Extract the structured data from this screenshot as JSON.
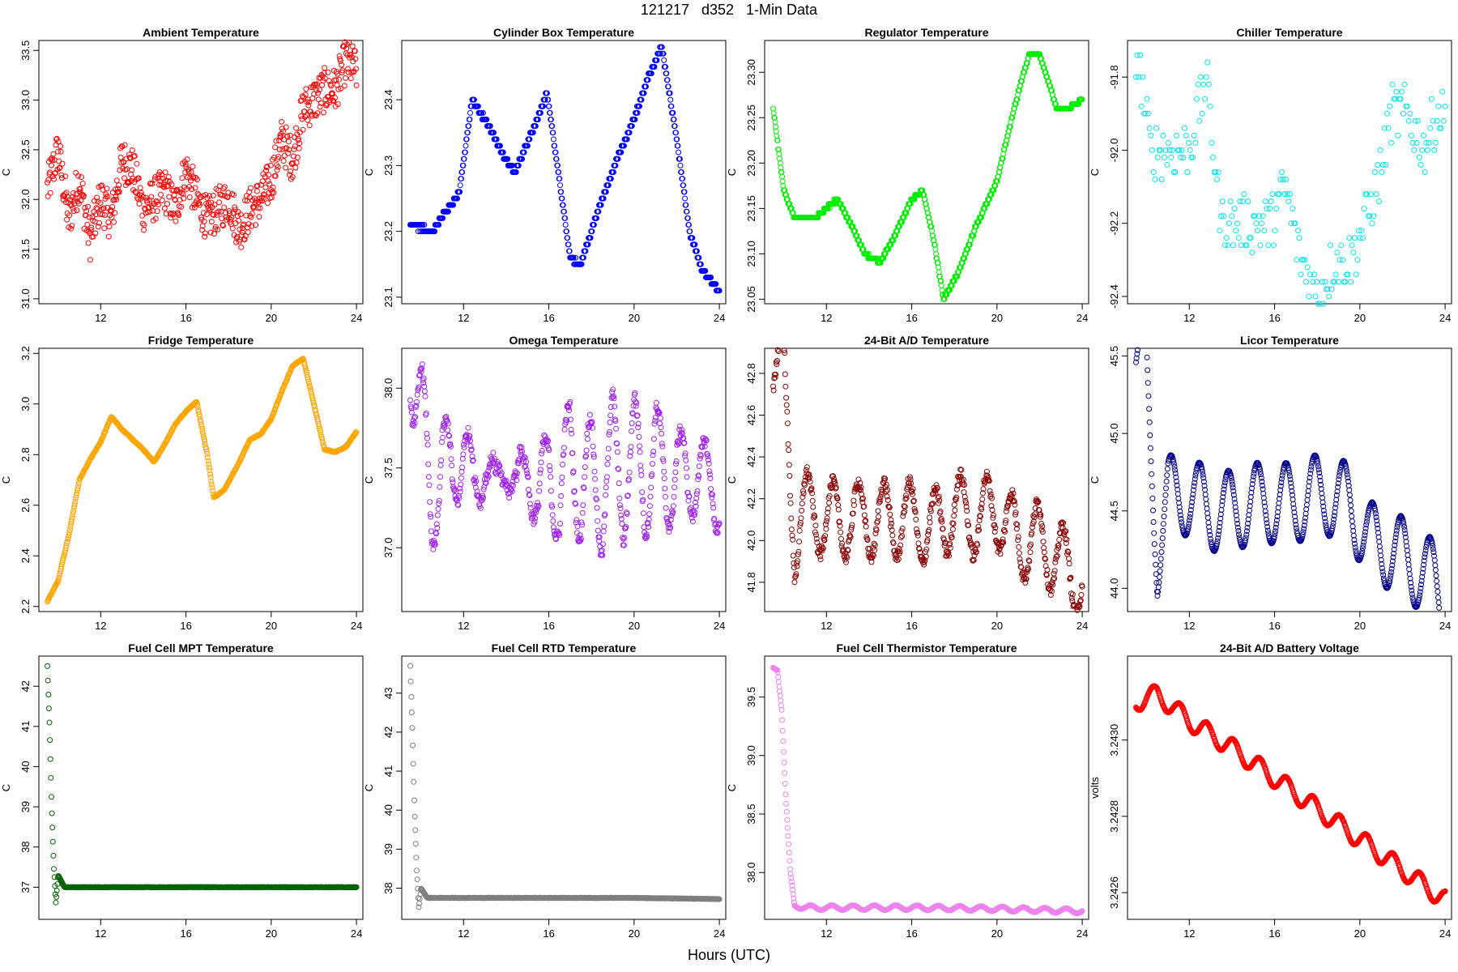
{
  "page": {
    "title": "121217   d352   1-Min Data",
    "xlabel": "Hours (UTC)"
  },
  "chart_data": [
    {
      "type": "scatter",
      "title": "Ambient Temperature",
      "ylabel": "C",
      "color": "#ff0000",
      "xlim": [
        9.1,
        24.3
      ],
      "ylim": [
        30.95,
        33.6
      ],
      "xticks": [
        12,
        16,
        20,
        24
      ],
      "yticks": [
        31.0,
        31.5,
        32.0,
        32.5,
        33.0,
        33.5
      ],
      "x": [
        9.5,
        10,
        10.5,
        11,
        11.5,
        12,
        12.5,
        13,
        13.5,
        14,
        14.5,
        15,
        15.5,
        16,
        16.5,
        17,
        17.5,
        18,
        18.5,
        19,
        19.5,
        20,
        20.5,
        21,
        21.5,
        22,
        22.5,
        23,
        23.5,
        24
      ],
      "y": [
        32.1,
        32.5,
        31.8,
        32.2,
        31.6,
        32.0,
        31.8,
        32.4,
        32.3,
        31.9,
        32.0,
        32.1,
        31.9,
        32.3,
        32.0,
        31.8,
        31.9,
        32.0,
        31.7,
        31.9,
        32.0,
        32.2,
        32.6,
        32.4,
        32.9,
        33.0,
        33.1,
        33.1,
        33.4,
        33.3
      ],
      "noise": 0.45,
      "step": 0
    },
    {
      "type": "scatter",
      "title": "Cylinder Box Temperature",
      "ylabel": "C",
      "color": "#0000ff",
      "xlim": [
        9.1,
        24.3
      ],
      "ylim": [
        23.09,
        23.49
      ],
      "xticks": [
        12,
        16,
        20,
        24
      ],
      "yticks": [
        23.1,
        23.2,
        23.3,
        23.4
      ],
      "x": [
        9.5,
        10.5,
        11.2,
        11.8,
        12.4,
        13.2,
        13.8,
        14.4,
        15.2,
        15.9,
        16.4,
        17.0,
        17.5,
        18.3,
        19.2,
        20.0,
        20.6,
        21.3,
        22.0,
        22.6,
        23.2,
        24.0
      ],
      "y": [
        23.21,
        23.2,
        23.23,
        23.26,
        23.4,
        23.36,
        23.32,
        23.29,
        23.35,
        23.41,
        23.3,
        23.16,
        23.15,
        23.23,
        23.31,
        23.37,
        23.43,
        23.48,
        23.34,
        23.2,
        23.14,
        23.11
      ],
      "noise": 0.004,
      "step": 0.01
    },
    {
      "type": "scatter",
      "title": "Regulator Temperature",
      "ylabel": "C",
      "color": "#00ee00",
      "xlim": [
        9.1,
        24.3
      ],
      "ylim": [
        23.045,
        23.335
      ],
      "xticks": [
        12,
        16,
        20,
        24
      ],
      "yticks": [
        23.05,
        23.1,
        23.15,
        23.2,
        23.25,
        23.3
      ],
      "x": [
        9.5,
        10.0,
        10.5,
        11.5,
        12.5,
        13.2,
        13.8,
        14.5,
        15.2,
        16.0,
        16.5,
        17.0,
        17.5,
        18.2,
        19.0,
        20.0,
        20.8,
        21.5,
        22.0,
        22.8,
        23.3,
        24.0
      ],
      "y": [
        23.26,
        23.17,
        23.14,
        23.14,
        23.16,
        23.13,
        23.1,
        23.09,
        23.12,
        23.16,
        23.17,
        23.12,
        23.05,
        23.08,
        23.13,
        23.18,
        23.26,
        23.32,
        23.32,
        23.26,
        23.26,
        23.27
      ],
      "noise": 0.002,
      "step": 0.005
    },
    {
      "type": "scatter",
      "title": "Chiller Temperature",
      "ylabel": "C",
      "color": "#00e5ee",
      "xlim": [
        9.1,
        24.3
      ],
      "ylim": [
        -92.42,
        -91.7
      ],
      "xticks": [
        12,
        16,
        20,
        24
      ],
      "yticks": [
        -92.4,
        -92.2,
        -92.0,
        -91.8
      ],
      "x": [
        9.5,
        10.2,
        11.0,
        12.0,
        12.8,
        13.5,
        14.2,
        15.0,
        15.8,
        16.5,
        17.2,
        18.0,
        18.8,
        19.6,
        20.2,
        20.8,
        21.5,
        22.2,
        23.0,
        23.6,
        24.0
      ],
      "y": [
        -91.72,
        -92.0,
        -92.0,
        -92.0,
        -91.8,
        -92.2,
        -92.2,
        -92.2,
        -92.2,
        -92.1,
        -92.3,
        -92.4,
        -92.3,
        -92.3,
        -92.2,
        -92.1,
        -91.9,
        -91.9,
        -92.0,
        -91.9,
        -91.9
      ],
      "noise": 0.15,
      "step": 0.02,
      "sparse": true
    },
    {
      "type": "scatter",
      "title": "Fridge Temperature",
      "ylabel": "C",
      "color": "#ffa500",
      "xlim": [
        9.1,
        24.3
      ],
      "ylim": [
        2.18,
        3.22
      ],
      "xticks": [
        12,
        16,
        20,
        24
      ],
      "yticks": [
        2.2,
        2.4,
        2.6,
        2.8,
        3.0,
        3.2
      ],
      "x": [
        9.5,
        10.0,
        10.5,
        11.0,
        11.5,
        12.0,
        12.5,
        13.0,
        13.5,
        14.0,
        14.5,
        15.0,
        15.5,
        16.0,
        16.5,
        17.0,
        17.3,
        17.8,
        18.5,
        19.0,
        19.5,
        20.0,
        20.5,
        21.0,
        21.5,
        22.0,
        22.5,
        23.0,
        23.5,
        24.0
      ],
      "y": [
        2.22,
        2.3,
        2.48,
        2.7,
        2.78,
        2.85,
        2.95,
        2.9,
        2.86,
        2.82,
        2.77,
        2.84,
        2.92,
        2.97,
        3.01,
        2.8,
        2.63,
        2.66,
        2.77,
        2.86,
        2.88,
        2.94,
        3.05,
        3.15,
        3.18,
        3.0,
        2.82,
        2.81,
        2.83,
        2.89
      ],
      "noise": 0.004,
      "step": 0
    },
    {
      "type": "scatter",
      "title": "Omega Temperature",
      "ylabel": "C",
      "color": "#a020f0",
      "xlim": [
        9.1,
        24.3
      ],
      "ylim": [
        36.6,
        38.25
      ],
      "xticks": [
        12,
        16,
        20,
        24
      ],
      "yticks": [
        37.0,
        37.5,
        38.0
      ],
      "x": [
        9.5,
        10.0,
        10.5,
        11.0,
        11.5,
        12.0,
        12.5,
        13.0,
        13.5,
        14.0,
        14.5,
        15.0,
        15.5,
        16.0,
        16.5,
        17.0,
        17.5,
        18.0,
        18.5,
        19.0,
        19.5,
        20.0,
        20.5,
        21.0,
        21.5,
        22.0,
        22.5,
        23.0,
        23.5,
        24.0
      ],
      "y": [
        38.1,
        38.0,
        37.1,
        37.7,
        37.3,
        37.8,
        37.2,
        37.7,
        37.2,
        37.7,
        37.2,
        37.7,
        37.1,
        37.7,
        37.1,
        37.8,
        37.2,
        37.6,
        37.2,
        37.7,
        37.3,
        37.7,
        37.3,
        37.7,
        37.3,
        37.6,
        37.3,
        37.6,
        37.3,
        37.4
      ],
      "noise": 0.08,
      "step": 0,
      "osc": 0.28,
      "period": 1.1
    },
    {
      "type": "scatter",
      "title": "24-Bit A/D Temperature",
      "ylabel": "C",
      "color": "#8b0000",
      "xlim": [
        9.1,
        24.3
      ],
      "ylim": [
        41.66,
        42.92
      ],
      "xticks": [
        12,
        16,
        20,
        24
      ],
      "yticks": [
        41.8,
        42.0,
        42.2,
        42.4,
        42.6,
        42.8
      ],
      "x": [
        9.5,
        10.0,
        10.5,
        11.0,
        12.0,
        13.0,
        14.0,
        15.0,
        16.0,
        17.0,
        18.0,
        19.0,
        20.0,
        21.0,
        22.0,
        23.0,
        24.0
      ],
      "y": [
        42.8,
        42.8,
        42.0,
        42.15,
        42.1,
        42.1,
        42.1,
        42.1,
        42.1,
        42.05,
        42.15,
        42.1,
        42.15,
        42.0,
        42.0,
        41.9,
        41.8
      ],
      "noise": 0.06,
      "step": 0,
      "osc": 0.18,
      "period": 1.2
    },
    {
      "type": "scatter",
      "title": "Licor Temperature",
      "ylabel": "C",
      "color": "#00008b",
      "xlim": [
        9.1,
        24.3
      ],
      "ylim": [
        43.85,
        45.55
      ],
      "xticks": [
        12,
        16,
        20,
        24
      ],
      "yticks": [
        44.0,
        44.5,
        45.0,
        45.5
      ],
      "x": [
        9.5,
        10.0,
        10.5,
        11.0,
        12.0,
        13.0,
        14.0,
        15.0,
        16.0,
        17.0,
        17.7,
        18.5,
        19.5,
        20.5,
        21.5,
        22.5,
        23.5,
        24.0
      ],
      "y": [
        45.4,
        45.4,
        44.2,
        44.6,
        44.6,
        44.5,
        44.5,
        44.55,
        44.55,
        44.55,
        44.6,
        44.6,
        44.55,
        44.3,
        44.25,
        44.15,
        44.05,
        43.9
      ],
      "noise": 0.003,
      "step": 0,
      "osc": 0.26,
      "period": 1.35
    },
    {
      "type": "scatter",
      "title": "Fuel Cell MPT Temperature",
      "ylabel": "C",
      "color": "#006400",
      "xlim": [
        9.1,
        24.3
      ],
      "ylim": [
        36.2,
        42.75
      ],
      "xticks": [
        12,
        16,
        20,
        24
      ],
      "yticks": [
        37,
        38,
        39,
        40,
        41,
        42
      ],
      "x": [
        9.5,
        9.6,
        9.7,
        9.8,
        9.9,
        10.0,
        10.3,
        10.8,
        12,
        16,
        20,
        24
      ],
      "y": [
        42.5,
        41.0,
        39.0,
        37.5,
        36.6,
        37.3,
        37.0,
        37.0,
        37.0,
        37.0,
        37.0,
        37.0
      ],
      "noise": 0.01,
      "step": 0,
      "decay": true
    },
    {
      "type": "scatter",
      "title": "Fuel Cell RTD Temperature",
      "ylabel": "C",
      "color": "#7f7f7f",
      "xlim": [
        9.1,
        24.3
      ],
      "ylim": [
        37.2,
        43.95
      ],
      "xticks": [
        12,
        16,
        20,
        24
      ],
      "yticks": [
        38,
        39,
        40,
        41,
        42,
        43
      ],
      "x": [
        9.5,
        9.6,
        9.7,
        9.8,
        9.9,
        10.0,
        10.3,
        10.8,
        12,
        16,
        20,
        24
      ],
      "y": [
        43.7,
        42.0,
        40.0,
        38.5,
        37.5,
        38.0,
        37.75,
        37.75,
        37.75,
        37.75,
        37.75,
        37.72
      ],
      "noise": 0.01,
      "step": 0,
      "decay": true
    },
    {
      "type": "scatter",
      "title": "Fuel Cell Thermistor Temperature",
      "ylabel": "C",
      "color": "#ee82ee",
      "xlim": [
        9.1,
        24.3
      ],
      "ylim": [
        37.6,
        39.85
      ],
      "xticks": [
        12,
        16,
        20,
        24
      ],
      "yticks": [
        38.0,
        38.5,
        39.0,
        39.5
      ],
      "x": [
        9.5,
        9.7,
        9.9,
        10.1,
        10.3,
        10.5,
        11.0,
        12,
        16,
        20,
        24
      ],
      "y": [
        39.75,
        39.75,
        39.4,
        38.6,
        38.0,
        37.72,
        37.7,
        37.7,
        37.7,
        37.69,
        37.67
      ],
      "noise": 0.003,
      "step": 0,
      "osc": 0.02,
      "period": 1.0
    },
    {
      "type": "scatter",
      "title": "24-Bit A/D Battery Voltage",
      "ylabel": "volts",
      "color": "#ff0000",
      "xlim": [
        9.1,
        24.3
      ],
      "ylim": [
        3.24253,
        3.24322
      ],
      "xticks": [
        12,
        16,
        20,
        24
      ],
      "yticks": [
        3.2426,
        3.2428,
        3.243
      ],
      "x": [
        9.5,
        10.5,
        12,
        14,
        16,
        18,
        20,
        22,
        24
      ],
      "y": [
        3.2431,
        3.24312,
        3.24305,
        3.24298,
        3.2429,
        3.24282,
        3.24274,
        3.24266,
        3.24258
      ],
      "noise": 1.5e-06,
      "step": 0,
      "osc": 2.5e-05,
      "period": 1.25
    }
  ]
}
